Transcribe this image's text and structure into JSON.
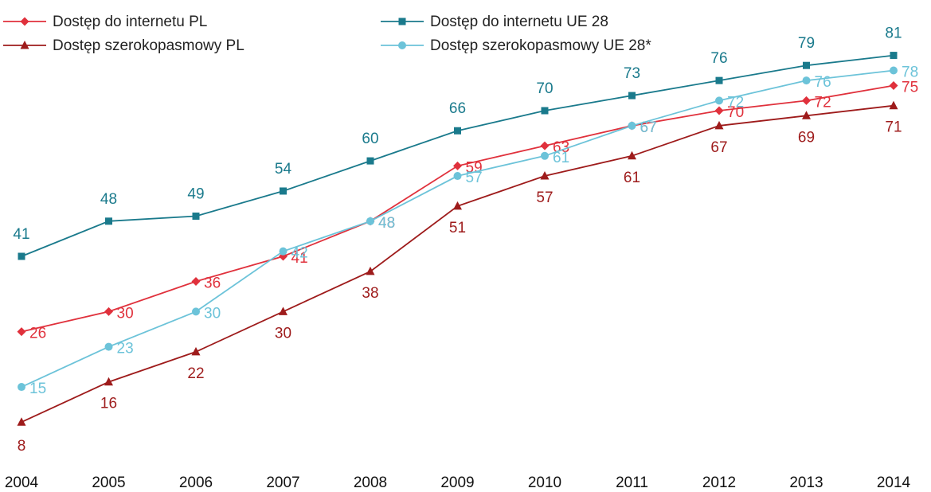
{
  "chart_data": {
    "type": "line",
    "title": "",
    "xlabel": "",
    "ylabel": "",
    "x": [
      "2004",
      "2005",
      "2006",
      "2007",
      "2008",
      "2009",
      "2010",
      "2011",
      "2012",
      "2013",
      "2014"
    ],
    "ylim": [
      0,
      90
    ],
    "grid": false,
    "legend_position": "top-left",
    "series": [
      {
        "name": "Dostęp do internetu PL",
        "color": "#e0313c",
        "marker": "diamond",
        "values": [
          26,
          30,
          36,
          41,
          48,
          59,
          63,
          67,
          70,
          72,
          75
        ],
        "labels": [
          "26",
          "30",
          "36",
          "41",
          "48",
          "59",
          "63",
          "67",
          "70",
          "72",
          "75"
        ]
      },
      {
        "name": "Dostęp do internetu UE 28",
        "color": "#1a7a8c",
        "marker": "square",
        "values": [
          41,
          48,
          49,
          54,
          60,
          66,
          70,
          73,
          76,
          79,
          81
        ],
        "labels": [
          "41",
          "48",
          "49",
          "54",
          "60",
          "66",
          "70",
          "73",
          "76",
          "79",
          "81"
        ]
      },
      {
        "name": "Dostęp szerokopasmowy PL",
        "color": "#9e1b1b",
        "marker": "triangle",
        "values": [
          8,
          16,
          22,
          30,
          38,
          51,
          57,
          61,
          67,
          69,
          71
        ],
        "labels": [
          "8",
          "16",
          "22",
          "30",
          "38",
          "51",
          "57",
          "61",
          "67",
          "69",
          "71"
        ]
      },
      {
        "name": "Dostęp szerokopasmowy UE 28*",
        "color": "#6cc3d9",
        "marker": "circle",
        "values": [
          15,
          23,
          30,
          42,
          48,
          57,
          61,
          67,
          72,
          76,
          78
        ],
        "labels": [
          "15",
          "23",
          "30",
          "42",
          "48",
          "57",
          "61",
          "67",
          "72",
          "76",
          "78"
        ]
      }
    ]
  }
}
